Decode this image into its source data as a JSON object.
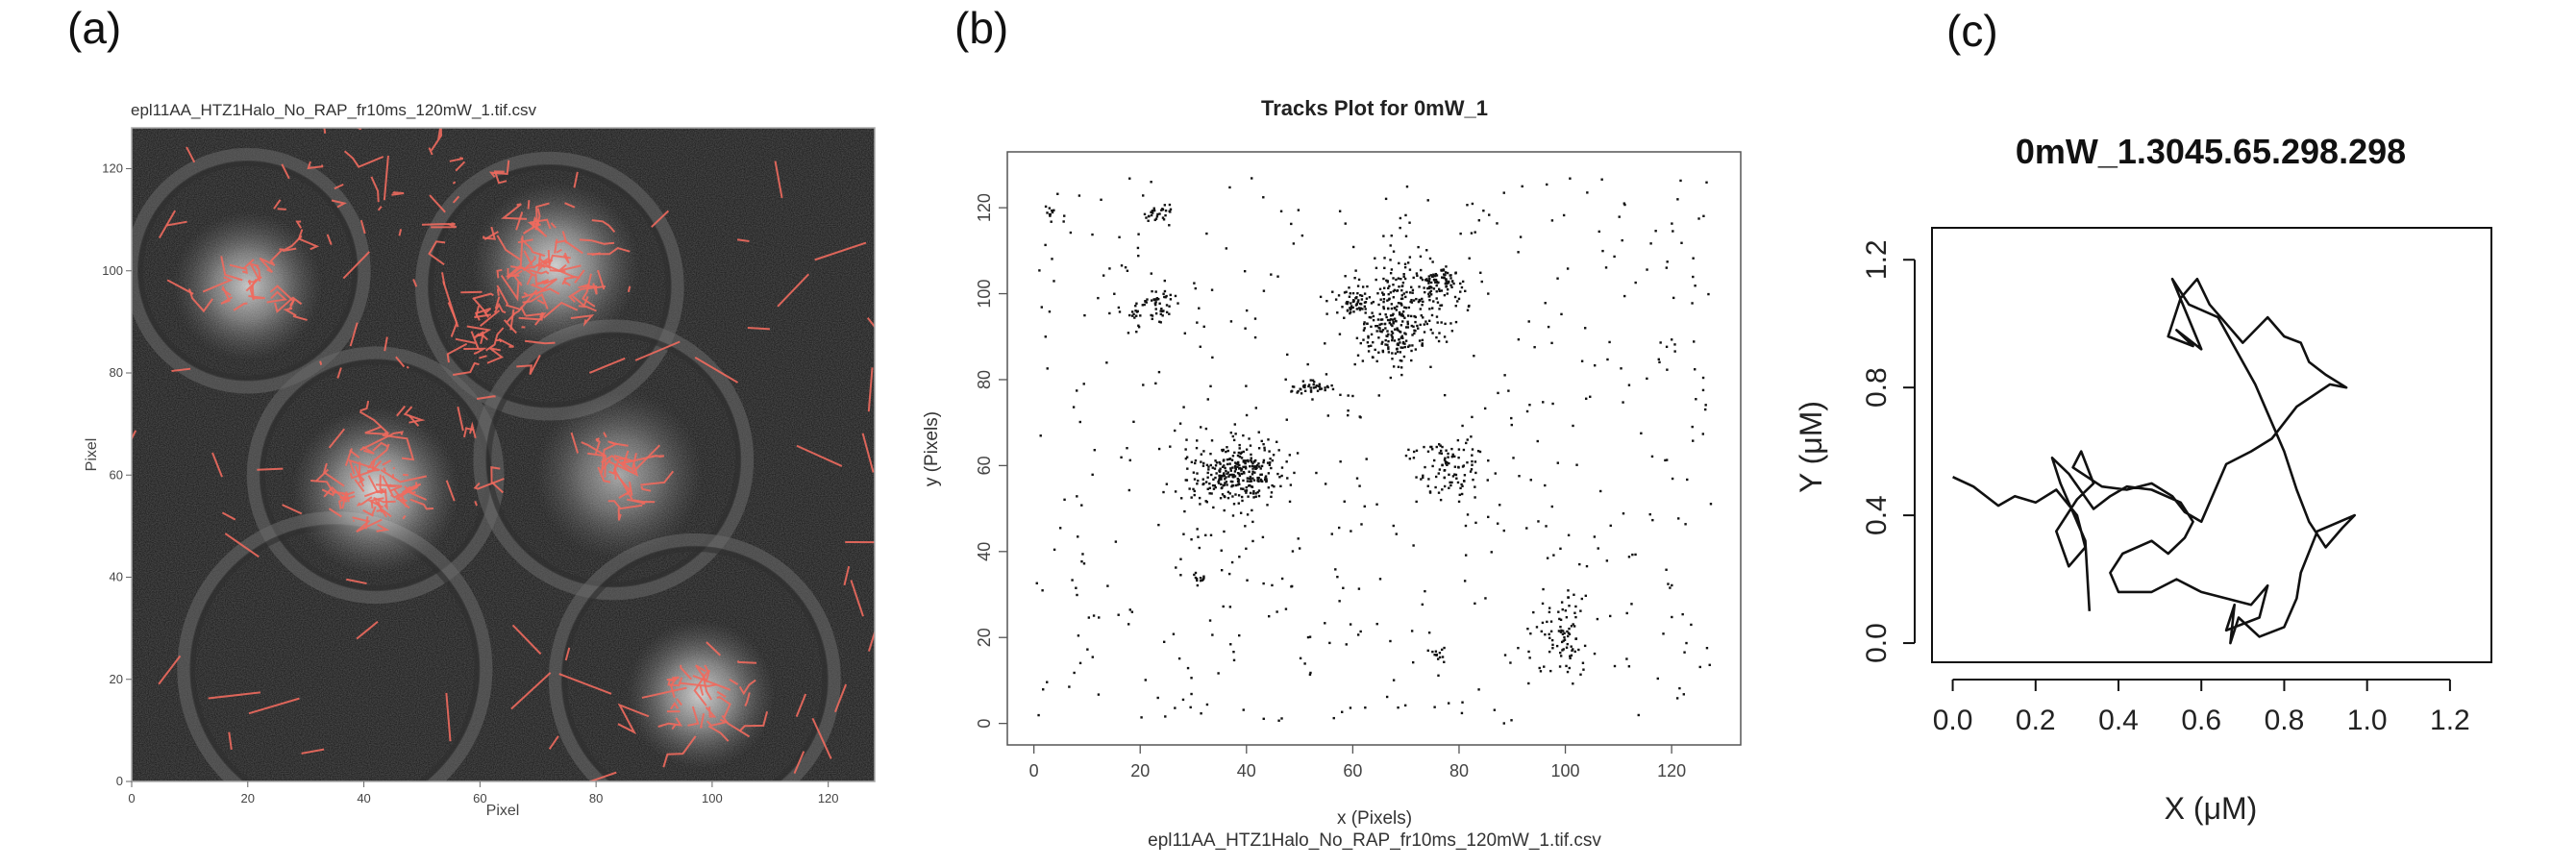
{
  "panel_labels": [
    "(a)",
    "(b)",
    "(c)"
  ],
  "chart_data": [
    {
      "type": "scatter",
      "panel": "(a)",
      "title": "epl11AA_HTZ1Halo_No_RAP_fr10ms_120mW_1.tif.csv",
      "xlabel": "Pixel",
      "ylabel": "Pixel",
      "xlim": [
        0,
        128
      ],
      "ylim": [
        0,
        128
      ],
      "xticks": [
        "0",
        "20",
        "40",
        "60",
        "80",
        "100",
        "120"
      ],
      "yticks": [
        "0",
        "20",
        "40",
        "60",
        "80",
        "100",
        "120"
      ],
      "background": "grayscale microscopy image of yeast cells",
      "track_color": "#f06a5e",
      "nuclei": [
        {
          "x": 20,
          "y": 97,
          "r": 8,
          "brightness": 0.75
        },
        {
          "x": 73,
          "y": 101,
          "r": 9,
          "brightness": 0.8
        },
        {
          "x": 42,
          "y": 57,
          "r": 9,
          "brightness": 0.85
        },
        {
          "x": 84,
          "y": 60,
          "r": 9,
          "brightness": 0.6
        },
        {
          "x": 98,
          "y": 17,
          "r": 8,
          "brightness": 0.8
        }
      ],
      "cells": [
        {
          "x": 20,
          "y": 100,
          "r": 20
        },
        {
          "x": 72,
          "y": 97,
          "r": 22
        },
        {
          "x": 42,
          "y": 60,
          "r": 21
        },
        {
          "x": 83,
          "y": 63,
          "r": 23
        },
        {
          "x": 35,
          "y": 22,
          "r": 26
        },
        {
          "x": 97,
          "y": 20,
          "r": 24
        }
      ],
      "track_clusters": [
        {
          "x": 20,
          "y": 97,
          "spread": 5,
          "n": 20
        },
        {
          "x": 73,
          "y": 101,
          "spread": 7,
          "n": 60
        },
        {
          "x": 63,
          "y": 90,
          "spread": 6,
          "n": 30
        },
        {
          "x": 42,
          "y": 57,
          "spread": 6,
          "n": 55
        },
        {
          "x": 84,
          "y": 60,
          "spread": 7,
          "n": 30
        },
        {
          "x": 98,
          "y": 17,
          "spread": 6,
          "n": 30
        },
        {
          "x": 30,
          "y": 113,
          "spread": 12,
          "n": 15
        },
        {
          "x": 60,
          "y": 110,
          "spread": 15,
          "n": 25
        },
        {
          "x": 50,
          "y": 70,
          "spread": 14,
          "n": 25
        },
        {
          "x": 64,
          "y": 128,
          "spread": 60,
          "n": 60
        }
      ]
    },
    {
      "type": "scatter",
      "panel": "(b)",
      "title": "Tracks Plot for 0mW_1",
      "xlabel": "x (Pixels)",
      "ylabel": "y (Pixels)",
      "caption": "epl11AA_HTZ1Halo_No_RAP_fr10ms_120mW_1.tif.csv",
      "xlim": [
        -5,
        133
      ],
      "ylim": [
        -5,
        133
      ],
      "xticks": [
        "0",
        "20",
        "40",
        "60",
        "80",
        "100",
        "120"
      ],
      "yticks": [
        "0",
        "20",
        "40",
        "60",
        "80",
        "100",
        "120"
      ],
      "clusters": [
        {
          "x": 38,
          "y": 58,
          "sx": 4.5,
          "sy": 4,
          "n": 320
        },
        {
          "x": 70,
          "y": 97,
          "sx": 5,
          "sy": 6,
          "n": 260
        },
        {
          "x": 60,
          "y": 98,
          "sx": 1.5,
          "sy": 1.5,
          "n": 50
        },
        {
          "x": 77,
          "y": 103,
          "sx": 2,
          "sy": 1.5,
          "n": 60
        },
        {
          "x": 67,
          "y": 88,
          "sx": 3,
          "sy": 3,
          "n": 80
        },
        {
          "x": 78,
          "y": 60,
          "sx": 3,
          "sy": 4,
          "n": 100
        },
        {
          "x": 52,
          "y": 78,
          "sx": 2.5,
          "sy": 1,
          "n": 40
        },
        {
          "x": 24,
          "y": 98,
          "sx": 1.5,
          "sy": 2,
          "n": 40
        },
        {
          "x": 24,
          "y": 119,
          "sx": 1.5,
          "sy": 1,
          "n": 25
        },
        {
          "x": 19,
          "y": 96,
          "sx": 2,
          "sy": 2,
          "n": 25
        },
        {
          "x": 100,
          "y": 20,
          "sx": 2,
          "sy": 5,
          "n": 80
        },
        {
          "x": 31,
          "y": 34,
          "sx": 0.6,
          "sy": 0.6,
          "n": 12
        },
        {
          "x": 3,
          "y": 119,
          "sx": 0.5,
          "sy": 0.8,
          "n": 8
        },
        {
          "x": 76,
          "y": 16,
          "sx": 0.8,
          "sy": 0.8,
          "n": 10
        },
        {
          "x": 64,
          "y": 64,
          "sx": 50,
          "sy": 50,
          "n": 500
        }
      ]
    },
    {
      "type": "line",
      "panel": "(c)",
      "title": "0mW_1.3045.65.298.298",
      "xlabel": "X (μM)",
      "ylabel": "Y (μM)",
      "xlim": [
        -0.05,
        1.3
      ],
      "ylim": [
        -0.06,
        1.3
      ],
      "xticks": [
        "0.0",
        "0.2",
        "0.4",
        "0.6",
        "0.8",
        "1.0",
        "1.2"
      ],
      "yticks": [
        "0.0",
        "0.4",
        "0.8",
        "1.2"
      ],
      "x": [
        0.0,
        0.05,
        0.11,
        0.15,
        0.2,
        0.25,
        0.3,
        0.32,
        0.28,
        0.25,
        0.3,
        0.34,
        0.31,
        0.29,
        0.36,
        0.42,
        0.48,
        0.53,
        0.56,
        0.6,
        0.66,
        0.72,
        0.77,
        0.83,
        0.91,
        0.95,
        0.9,
        0.86,
        0.84,
        0.8,
        0.76,
        0.7,
        0.66,
        0.62,
        0.59,
        0.55,
        0.52,
        0.58,
        0.54,
        0.6,
        0.53,
        0.57,
        0.64,
        0.73,
        0.76,
        0.8,
        0.83,
        0.86,
        0.9,
        0.94,
        0.97,
        0.88,
        0.84,
        0.83,
        0.8,
        0.74,
        0.69,
        0.67,
        0.68,
        0.66,
        0.74,
        0.76,
        0.72,
        0.6,
        0.54,
        0.48,
        0.4,
        0.38,
        0.41,
        0.48,
        0.52,
        0.56,
        0.58,
        0.55,
        0.48,
        0.42,
        0.38,
        0.34,
        0.28,
        0.24,
        0.26,
        0.32,
        0.33
      ],
      "y": [
        0.52,
        0.49,
        0.43,
        0.46,
        0.44,
        0.48,
        0.4,
        0.3,
        0.24,
        0.35,
        0.45,
        0.5,
        0.6,
        0.55,
        0.49,
        0.48,
        0.5,
        0.46,
        0.41,
        0.38,
        0.56,
        0.6,
        0.64,
        0.74,
        0.81,
        0.8,
        0.84,
        0.88,
        0.94,
        0.96,
        1.02,
        0.94,
        1.0,
        1.06,
        1.14,
        1.08,
        0.96,
        0.93,
        0.98,
        0.92,
        1.14,
        1.06,
        1.02,
        0.81,
        0.72,
        0.6,
        0.48,
        0.38,
        0.3,
        0.36,
        0.4,
        0.35,
        0.22,
        0.14,
        0.05,
        0.02,
        0.08,
        0.0,
        0.12,
        0.04,
        0.08,
        0.18,
        0.12,
        0.16,
        0.2,
        0.16,
        0.16,
        0.22,
        0.28,
        0.32,
        0.28,
        0.33,
        0.38,
        0.44,
        0.48,
        0.49,
        0.46,
        0.42,
        0.53,
        0.58,
        0.5,
        0.32,
        0.1
      ]
    }
  ]
}
